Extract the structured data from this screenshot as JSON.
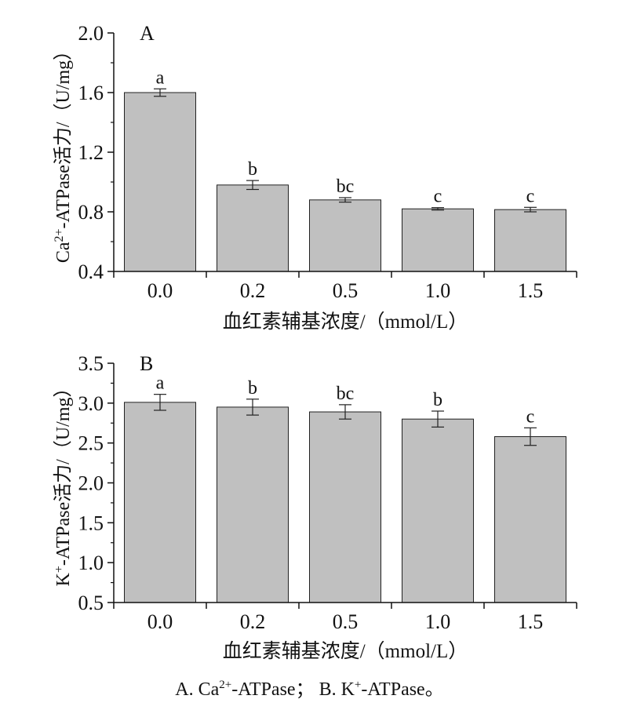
{
  "chart_data": [
    {
      "type": "bar",
      "panel_label": "A",
      "categories": [
        "0.0",
        "0.2",
        "0.5",
        "1.0",
        "1.5"
      ],
      "values": [
        1.6,
        0.98,
        0.88,
        0.82,
        0.815
      ],
      "errors": [
        0.025,
        0.03,
        0.015,
        0.008,
        0.015
      ],
      "sig_letters": [
        "a",
        "b",
        "bc",
        "c",
        "c"
      ],
      "ylim": [
        0.4,
        2.0
      ],
      "yticks": [
        "0.4",
        "0.8",
        "1.2",
        "1.6",
        "2.0"
      ],
      "xlabel": "血红素辅基浓度/（mmol/L）",
      "ylabel_prefix": "Ca",
      "ylabel_sup": "2+",
      "ylabel_suffix": "-ATPase活力/（U/mg）",
      "bar_color": "#c0c0c0"
    },
    {
      "type": "bar",
      "panel_label": "B",
      "categories": [
        "0.0",
        "0.2",
        "0.5",
        "1.0",
        "1.5"
      ],
      "values": [
        3.01,
        2.95,
        2.89,
        2.8,
        2.58
      ],
      "errors": [
        0.1,
        0.1,
        0.09,
        0.1,
        0.11
      ],
      "sig_letters": [
        "a",
        "b",
        "bc",
        "b",
        "c"
      ],
      "ylim": [
        0.5,
        3.5
      ],
      "yticks": [
        "0.5",
        "1.0",
        "1.5",
        "2.0",
        "2.5",
        "3.0",
        "3.5"
      ],
      "xlabel": "血红素辅基浓度/（mmol/L）",
      "ylabel_prefix": "K",
      "ylabel_sup": "+",
      "ylabel_suffix": "-ATPase活力/（U/mg）",
      "bar_color": "#c0c0c0"
    }
  ],
  "caption": {
    "a_prefix": "A. Ca",
    "a_sup": "2+",
    "a_suffix": "-ATPase；",
    "b_prefix": " B. K",
    "b_sup": "+",
    "b_suffix": "-ATPase。"
  }
}
